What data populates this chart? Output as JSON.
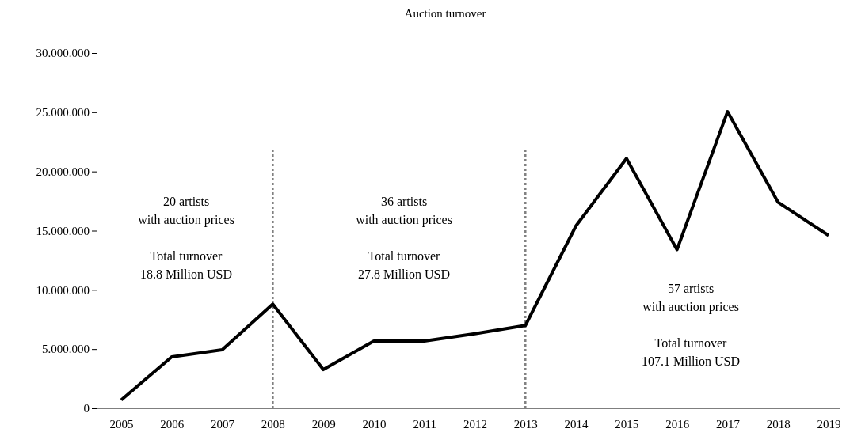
{
  "chart_data": {
    "type": "line",
    "title": "Auction turnover",
    "categories": [
      "2005",
      "2006",
      "2007",
      "2008",
      "2009",
      "2010",
      "2011",
      "2012",
      "2013",
      "2014",
      "2015",
      "2016",
      "2017",
      "2018",
      "2019"
    ],
    "series": [
      {
        "color": "#000000",
        "values": [
          700000,
          4340000,
          4940000,
          8800000,
          3270000,
          5680000,
          5680000,
          6300000,
          7000000,
          15400000,
          21100000,
          13400000,
          25050000,
          17400000,
          14600000
        ]
      }
    ],
    "ylim": [
      0,
      30000000
    ],
    "yticks": [
      {
        "value": 0,
        "label": "0"
      },
      {
        "value": 5000000,
        "label": "5.000.000"
      },
      {
        "value": 10000000,
        "label": "10.000.000"
      },
      {
        "value": 15000000,
        "label": "15.000.000"
      },
      {
        "value": 20000000,
        "label": "20.000.000"
      },
      {
        "value": 25000000,
        "label": "25.000.000"
      },
      {
        "value": 30000000,
        "label": "30.000.000"
      }
    ],
    "ref_lines": [
      {
        "axis": "x",
        "value": "2008",
        "color": "#808080",
        "line_style": "dotted"
      },
      {
        "axis": "x",
        "value": "2013",
        "color": "#808080",
        "line_style": "dotted"
      }
    ],
    "annotations": [
      "20 artists\nwith auction prices\n\nTotal turnover\n18.8 Million USD",
      "36 artists\nwith auction prices\n\nTotal turnover\n27.8 Million USD",
      "57 artists\nwith auction prices\n\nTotal turnover\n107.1 Million USD"
    ],
    "grid": false,
    "marker": "none",
    "line_style": "solid"
  }
}
